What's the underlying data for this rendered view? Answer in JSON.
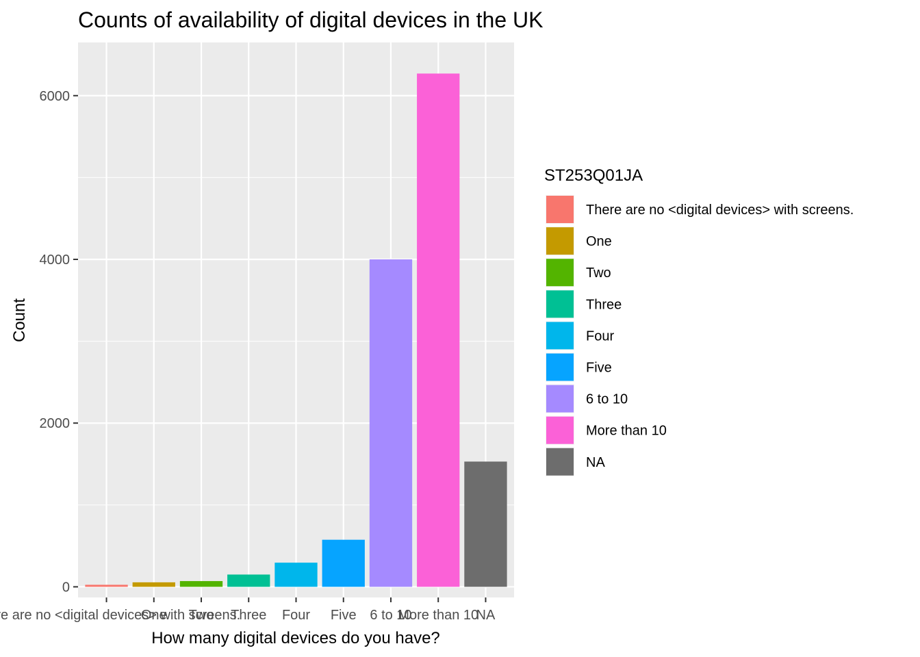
{
  "chart_data": {
    "type": "bar",
    "title": "Counts of availability of digital devices in the UK",
    "xlabel": "How many digital devices do you have?",
    "ylabel": "Count",
    "categories": [
      "There are no <digital devices> with screens.",
      "One",
      "Two",
      "Three",
      "Four",
      "Five",
      "6 to 10",
      "More than 10",
      "NA"
    ],
    "values": [
      25,
      55,
      70,
      150,
      295,
      575,
      4000,
      6270,
      1530
    ],
    "colors": [
      "#F8766D",
      "#C49A00",
      "#53B400",
      "#00C094",
      "#00B6EB",
      "#06A4FF",
      "#A58AFF",
      "#FB61D7",
      "#6D6D6D"
    ],
    "ylim": [
      -130,
      6650
    ],
    "yticks": [
      0,
      2000,
      4000,
      6000
    ],
    "grid": true,
    "legend": {
      "title": "ST253Q01JA",
      "position": "right"
    }
  }
}
